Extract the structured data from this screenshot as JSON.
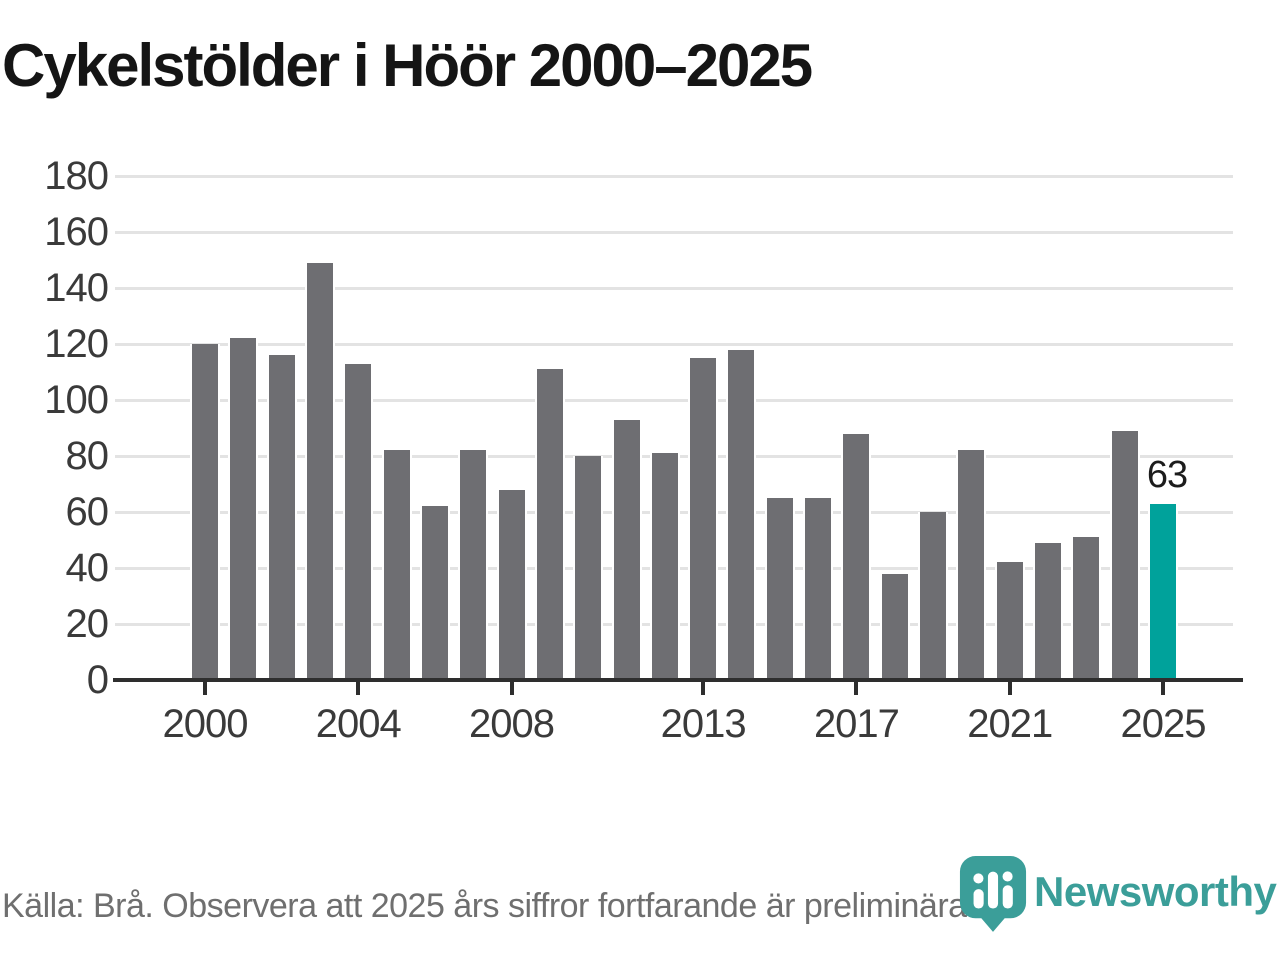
{
  "title": "Cykelstölder i Höör 2000–2025",
  "footer": {
    "source_note": "Källa: Brå. Observera att 2025 års siffror fortfarande är preliminära."
  },
  "branding": {
    "name": "Newsworthy",
    "logo_icon": "map-pin-with-bar-chart"
  },
  "colors": {
    "bar": "#6e6e72",
    "highlight": "#00a29b",
    "brand_teal": "#3b9e99",
    "gridline": "#e3e3e3",
    "axis": "#2e2e2e",
    "axis_text": "#3a3a3a",
    "footer_text": "#6f6f6f"
  },
  "chart_data": {
    "type": "bar",
    "title": "Cykelstölder i Höör 2000–2025",
    "categories": [
      2000,
      2001,
      2002,
      2003,
      2004,
      2005,
      2006,
      2007,
      2008,
      2009,
      2010,
      2011,
      2012,
      2013,
      2014,
      2015,
      2016,
      2017,
      2018,
      2019,
      2020,
      2021,
      2022,
      2023,
      2024,
      2025
    ],
    "values": [
      120,
      122,
      116,
      149,
      113,
      82,
      62,
      82,
      68,
      111,
      80,
      93,
      81,
      115,
      118,
      65,
      65,
      88,
      38,
      60,
      82,
      42,
      49,
      51,
      89,
      63
    ],
    "highlight_index": 25,
    "highlight_label": "63",
    "xlabel": "",
    "ylabel": "",
    "ylim": [
      0,
      180
    ],
    "y_ticks": [
      0,
      20,
      40,
      60,
      80,
      100,
      120,
      140,
      160,
      180
    ],
    "x_tick_years": [
      2000,
      2004,
      2008,
      2013,
      2017,
      2021,
      2025
    ],
    "grid": "horizontal",
    "legend": "none"
  }
}
